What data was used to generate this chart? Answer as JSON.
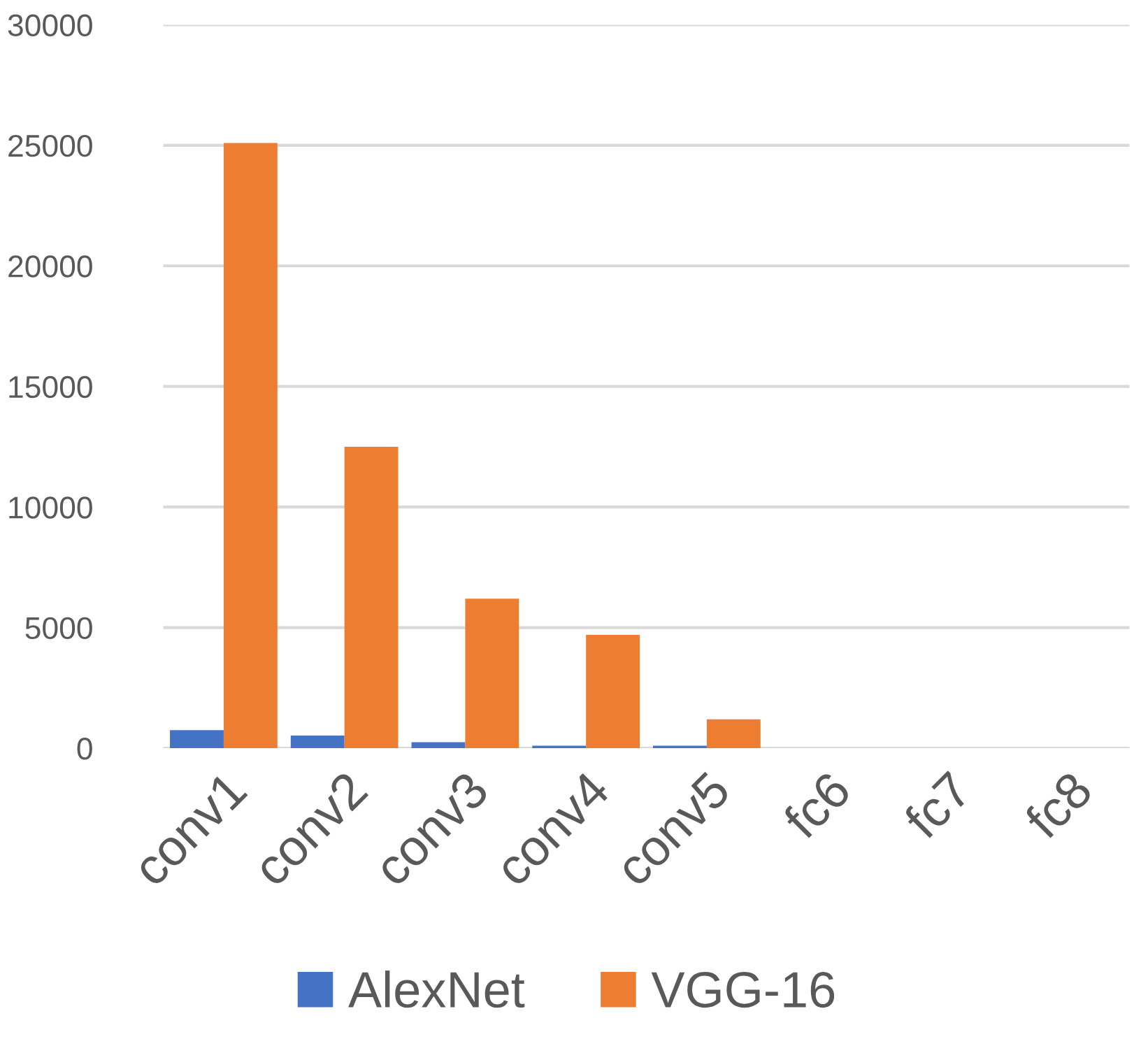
{
  "chart_data": {
    "type": "bar",
    "categories": [
      "conv1",
      "conv2",
      "conv3",
      "conv4",
      "conv5",
      "fc6",
      "fc7",
      "fc8"
    ],
    "series": [
      {
        "name": "AlexNet",
        "color": "#4472c4",
        "values": [
          750,
          520,
          250,
          100,
          100,
          0,
          0,
          0
        ]
      },
      {
        "name": "VGG-16",
        "color": "#ed7d31",
        "values": [
          25100,
          12500,
          6200,
          4700,
          1200,
          0,
          0,
          0
        ]
      }
    ],
    "ylim": [
      0,
      30000
    ],
    "yticks": [
      0,
      5000,
      10000,
      15000,
      20000,
      25000,
      30000
    ],
    "grid": "y",
    "legend": "bottom"
  }
}
